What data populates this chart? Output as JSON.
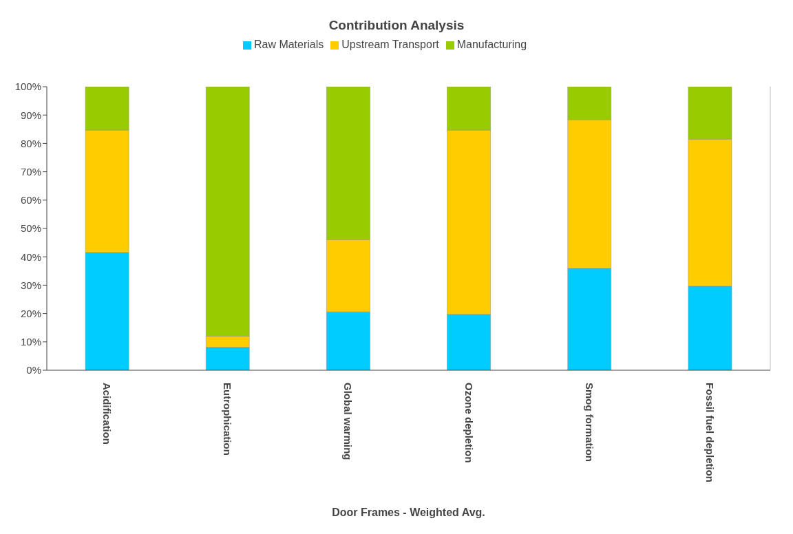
{
  "chart_data": {
    "type": "bar",
    "title": "Contribution Analysis",
    "xlabel": "Door Frames - Weighted Avg.",
    "stacked": true,
    "categories": [
      "Acidification",
      "Eutrophication",
      "Global warming",
      "Ozone depletion",
      "Smog formation",
      "Fossil fuel depletion"
    ],
    "series": [
      {
        "name": "Raw Materials",
        "color": "#00ccff",
        "values": [
          41.5,
          8.1,
          20.6,
          19.7,
          35.9,
          29.6
        ]
      },
      {
        "name": "Upstream Transport",
        "color": "#ffcc00",
        "values": [
          43.2,
          3.9,
          25.5,
          65.0,
          52.5,
          51.9
        ]
      },
      {
        "name": "Manufacturing",
        "color": "#99cc00",
        "values": [
          15.3,
          88.0,
          53.9,
          15.3,
          11.6,
          18.5
        ]
      }
    ],
    "ylim": [
      0,
      100
    ],
    "yticks": [
      {
        "value": 0,
        "label": "0%"
      },
      {
        "value": 10,
        "label": "10%"
      },
      {
        "value": 20,
        "label": "20%"
      },
      {
        "value": 30,
        "label": "30%"
      },
      {
        "value": 40,
        "label": "40%"
      },
      {
        "value": 50,
        "label": "50%"
      },
      {
        "value": 60,
        "label": "60%"
      },
      {
        "value": 70,
        "label": "70%"
      },
      {
        "value": 80,
        "label": "80%"
      },
      {
        "value": 90,
        "label": "90%"
      },
      {
        "value": 100,
        "label": "100%"
      }
    ],
    "grid": false,
    "legend": "top"
  }
}
